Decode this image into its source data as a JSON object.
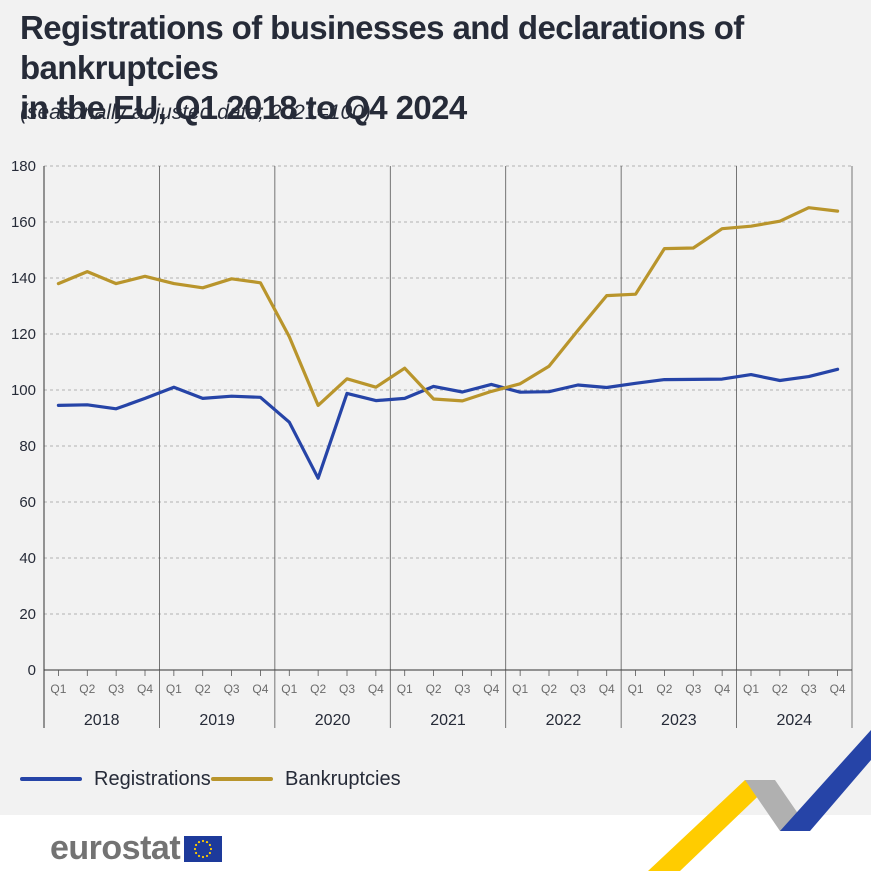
{
  "header": {
    "title_line1": "Registrations of businesses and declarations of bankruptcies",
    "title_line2": "in the EU, Q1 2018 to Q4 2024",
    "subtitle": "(seasonally adjusted data; 2021=100)"
  },
  "brand": {
    "logo_text": "eurostat",
    "colors": {
      "accent_yellow": "#ffcc00",
      "accent_blue": "#2644a7",
      "grey": "#b0b0b0"
    }
  },
  "chart_data": {
    "type": "line",
    "title": "Registrations of businesses and declarations of bankruptcies in the EU, Q1 2018 to Q4 2024",
    "subtitle": "(seasonally adjusted data; 2021=100)",
    "ylim": [
      0,
      180
    ],
    "yticks": [
      0,
      20,
      40,
      60,
      80,
      100,
      120,
      140,
      160,
      180
    ],
    "quarter_labels": [
      "Q1",
      "Q2",
      "Q3",
      "Q4"
    ],
    "years": [
      "2018",
      "2019",
      "2020",
      "2021",
      "2022",
      "2023",
      "2024"
    ],
    "grid": "horizontal dashed, vertical year separators",
    "legend_position": "bottom-left",
    "series": [
      {
        "name": "Registrations",
        "color": "#2644a7",
        "values": [
          94.5,
          94.7,
          93.3,
          97.0,
          101.0,
          97.0,
          97.8,
          97.4,
          88.5,
          68.5,
          98.8,
          96.2,
          97.0,
          101.3,
          99.3,
          102.0,
          99.2,
          99.4,
          101.8,
          100.9,
          102.4,
          103.7,
          103.8,
          103.9,
          105.5,
          103.4,
          104.8,
          107.4
        ]
      },
      {
        "name": "Bankruptcies",
        "color": "#b9952c",
        "values": [
          138.0,
          142.3,
          138.0,
          140.6,
          138.0,
          136.5,
          139.7,
          138.3,
          119.0,
          94.5,
          104.0,
          101.0,
          107.8,
          96.8,
          96.1,
          99.5,
          102.2,
          108.5,
          121.3,
          133.7,
          134.2,
          150.5,
          150.7,
          157.6,
          158.5,
          160.3,
          165.1,
          163.9
        ]
      }
    ]
  }
}
